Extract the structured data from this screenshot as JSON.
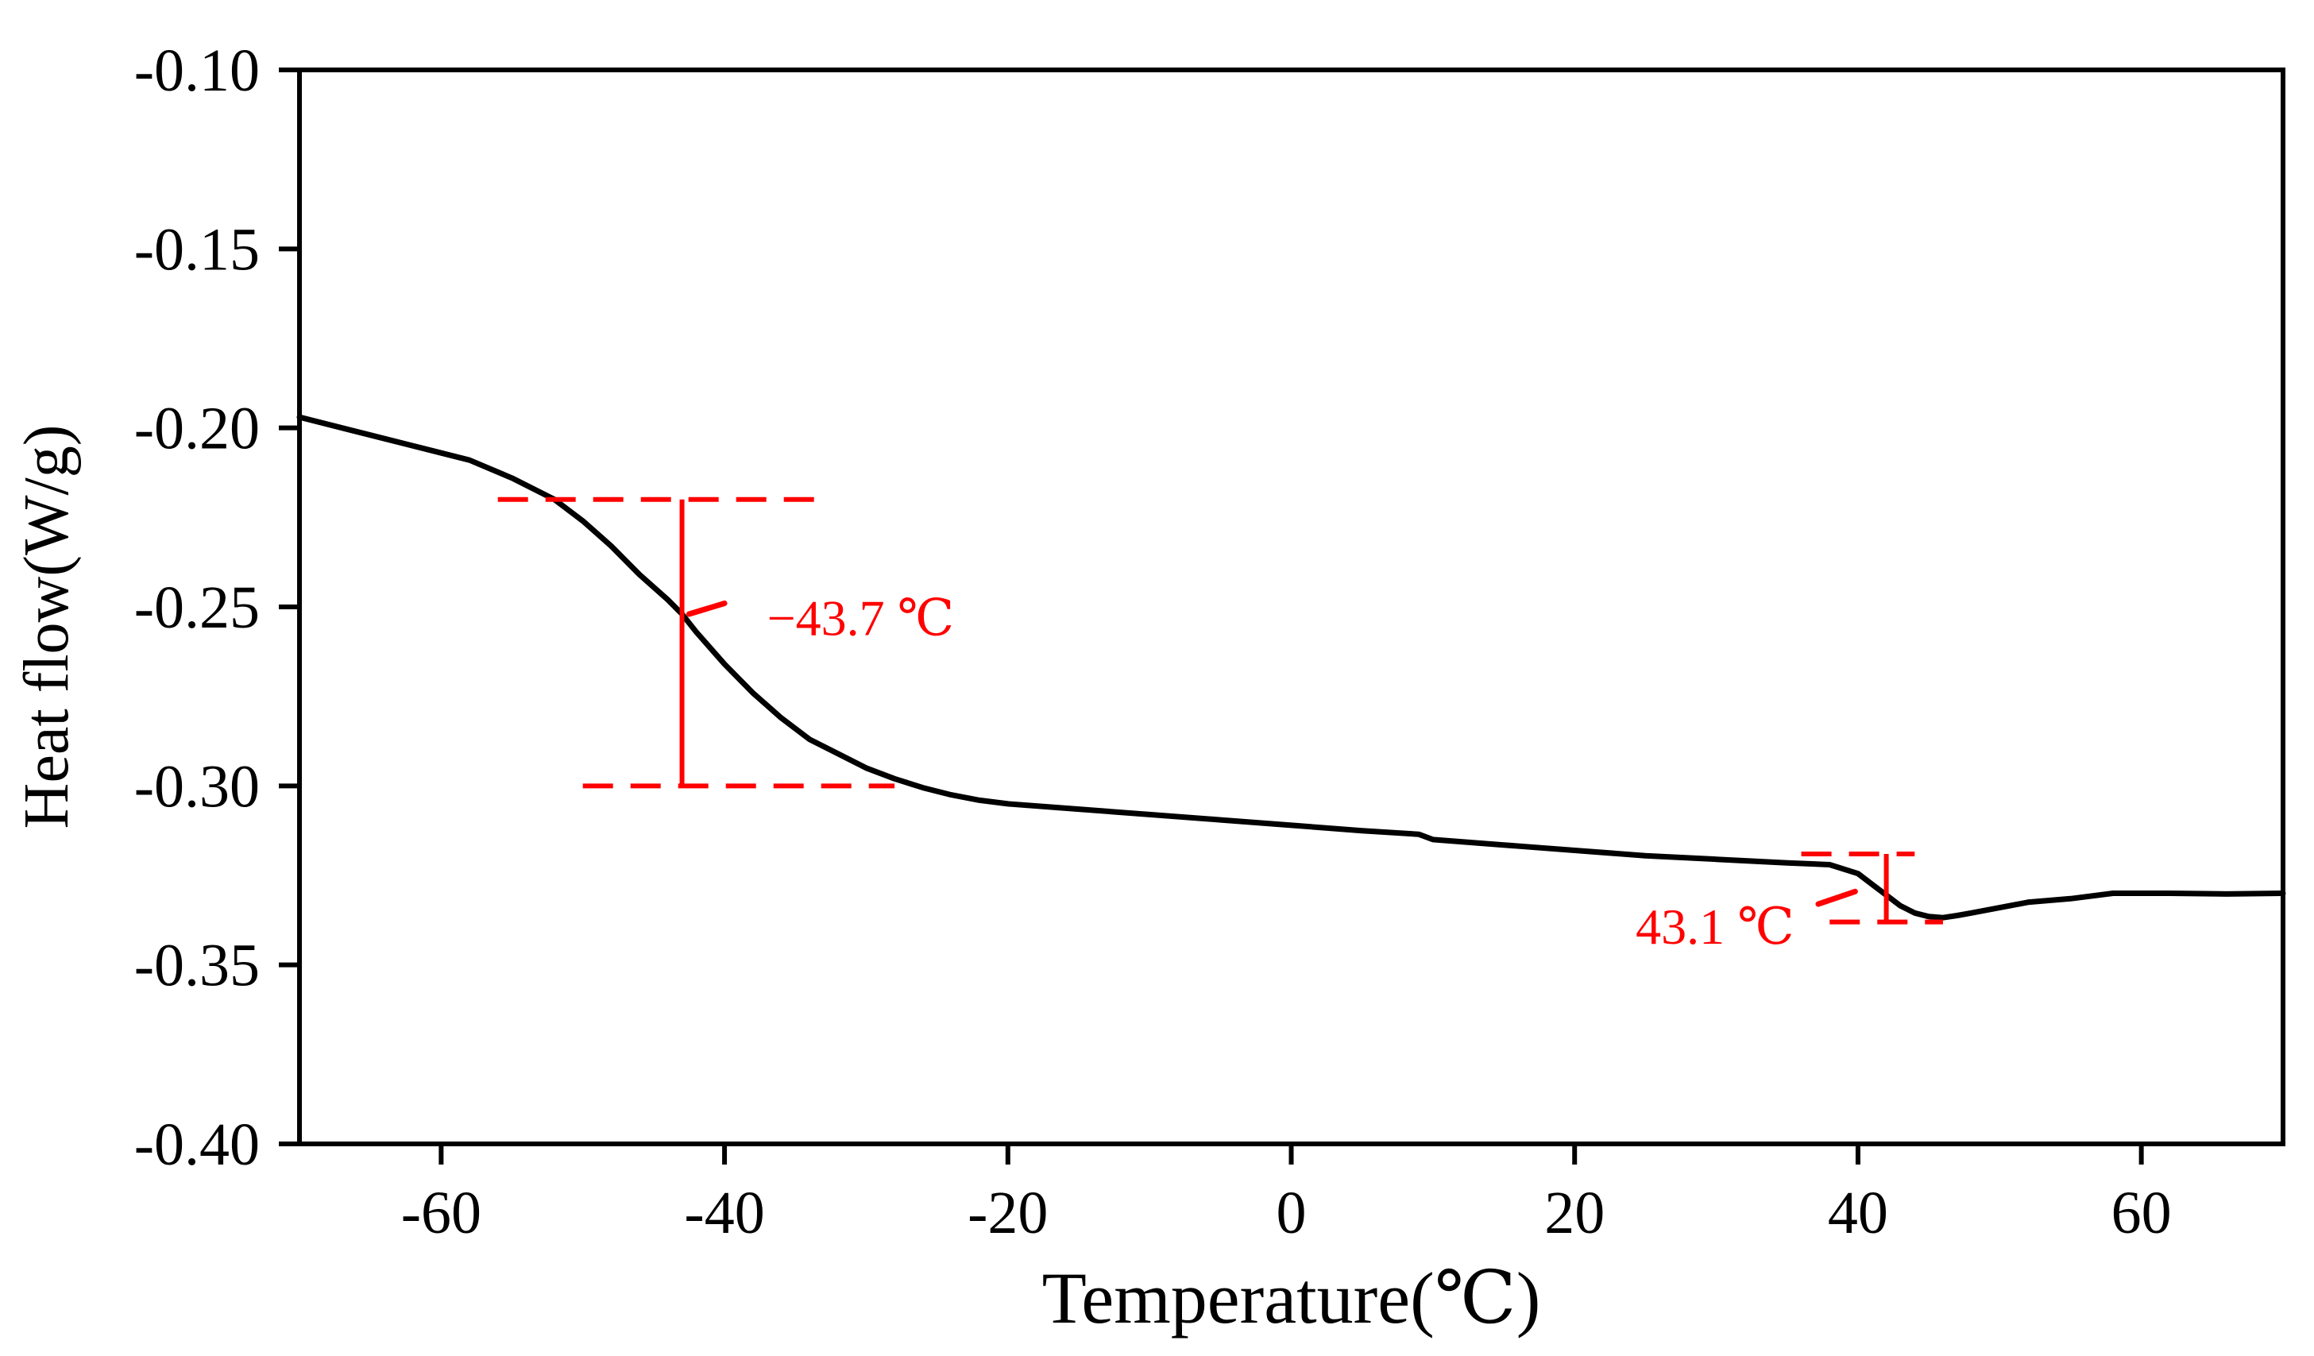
{
  "chart_data": {
    "type": "line",
    "title": "",
    "xlabel": "Temperature(℃)",
    "ylabel": "Heat flow(W/g)",
    "xlim": [
      -70,
      70
    ],
    "ylim": [
      -0.4,
      -0.1
    ],
    "x_ticks": [
      -60,
      -40,
      -20,
      0,
      20,
      40,
      60
    ],
    "x_tick_labels": [
      "-60",
      "-40",
      "-20",
      "0",
      "20",
      "40",
      "60"
    ],
    "y_ticks": [
      -0.1,
      -0.15,
      -0.2,
      -0.25,
      -0.3,
      -0.35,
      -0.4
    ],
    "y_tick_labels": [
      "-0.10",
      "-0.15",
      "-0.20",
      "-0.25",
      "-0.30",
      "-0.35",
      "-0.40"
    ],
    "grid": false,
    "series": [
      {
        "name": "Heat flow",
        "color": "#000000",
        "x": [
          -70,
          -67,
          -64,
          -61,
          -58,
          -55,
          -52,
          -50,
          -48,
          -46,
          -44,
          -43,
          -42,
          -40,
          -38,
          -36,
          -34,
          -32,
          -30,
          -28,
          -26,
          -24,
          -22,
          -20,
          -15,
          -10,
          -5,
          0,
          5,
          9,
          10,
          15,
          20,
          25,
          30,
          35,
          38,
          40,
          41,
          42,
          43,
          44,
          45,
          46,
          47,
          48,
          50,
          52,
          55,
          58,
          62,
          66,
          70
        ],
        "y": [
          -0.197,
          -0.2,
          -0.203,
          -0.206,
          -0.209,
          -0.214,
          -0.22,
          -0.226,
          -0.233,
          -0.241,
          -0.248,
          -0.252,
          -0.257,
          -0.266,
          -0.274,
          -0.281,
          -0.287,
          -0.291,
          -0.295,
          -0.298,
          -0.3005,
          -0.3025,
          -0.304,
          -0.305,
          -0.3065,
          -0.308,
          -0.3095,
          -0.311,
          -0.3125,
          -0.3135,
          -0.315,
          -0.3165,
          -0.318,
          -0.3195,
          -0.3205,
          -0.3215,
          -0.322,
          -0.3245,
          -0.3275,
          -0.3305,
          -0.3335,
          -0.3355,
          -0.3365,
          -0.3368,
          -0.3362,
          -0.3355,
          -0.334,
          -0.3325,
          -0.3315,
          -0.33,
          -0.33,
          -0.3302,
          -0.33
        ]
      }
    ],
    "annotations": [
      {
        "label": "−43.7 ℃",
        "color": "#ff0000",
        "upper_line": {
          "x_from": -56,
          "x_to": -33,
          "y": -0.22
        },
        "lower_line": {
          "x_from": -50,
          "x_to": -28,
          "y": -0.3
        },
        "vertical_x": -43,
        "arrow_from": {
          "x": -40,
          "y": -0.249
        },
        "arrow_to": {
          "x": -42.5,
          "y": -0.252
        },
        "text_anchor": {
          "x": -37,
          "y": -0.253
        }
      },
      {
        "label": "43.1 ℃",
        "color": "#ff0000",
        "upper_line": {
          "x_from": 36,
          "x_to": 44,
          "y": -0.319
        },
        "lower_line": {
          "x_from": 38,
          "x_to": 46,
          "y": -0.338
        },
        "vertical_x": 42,
        "arrow_from": {
          "x": 37.2,
          "y": -0.333
        },
        "arrow_to": {
          "x": 39.8,
          "y": -0.3295
        },
        "text_anchor": {
          "x": 35.5,
          "y": -0.3392
        }
      }
    ]
  }
}
